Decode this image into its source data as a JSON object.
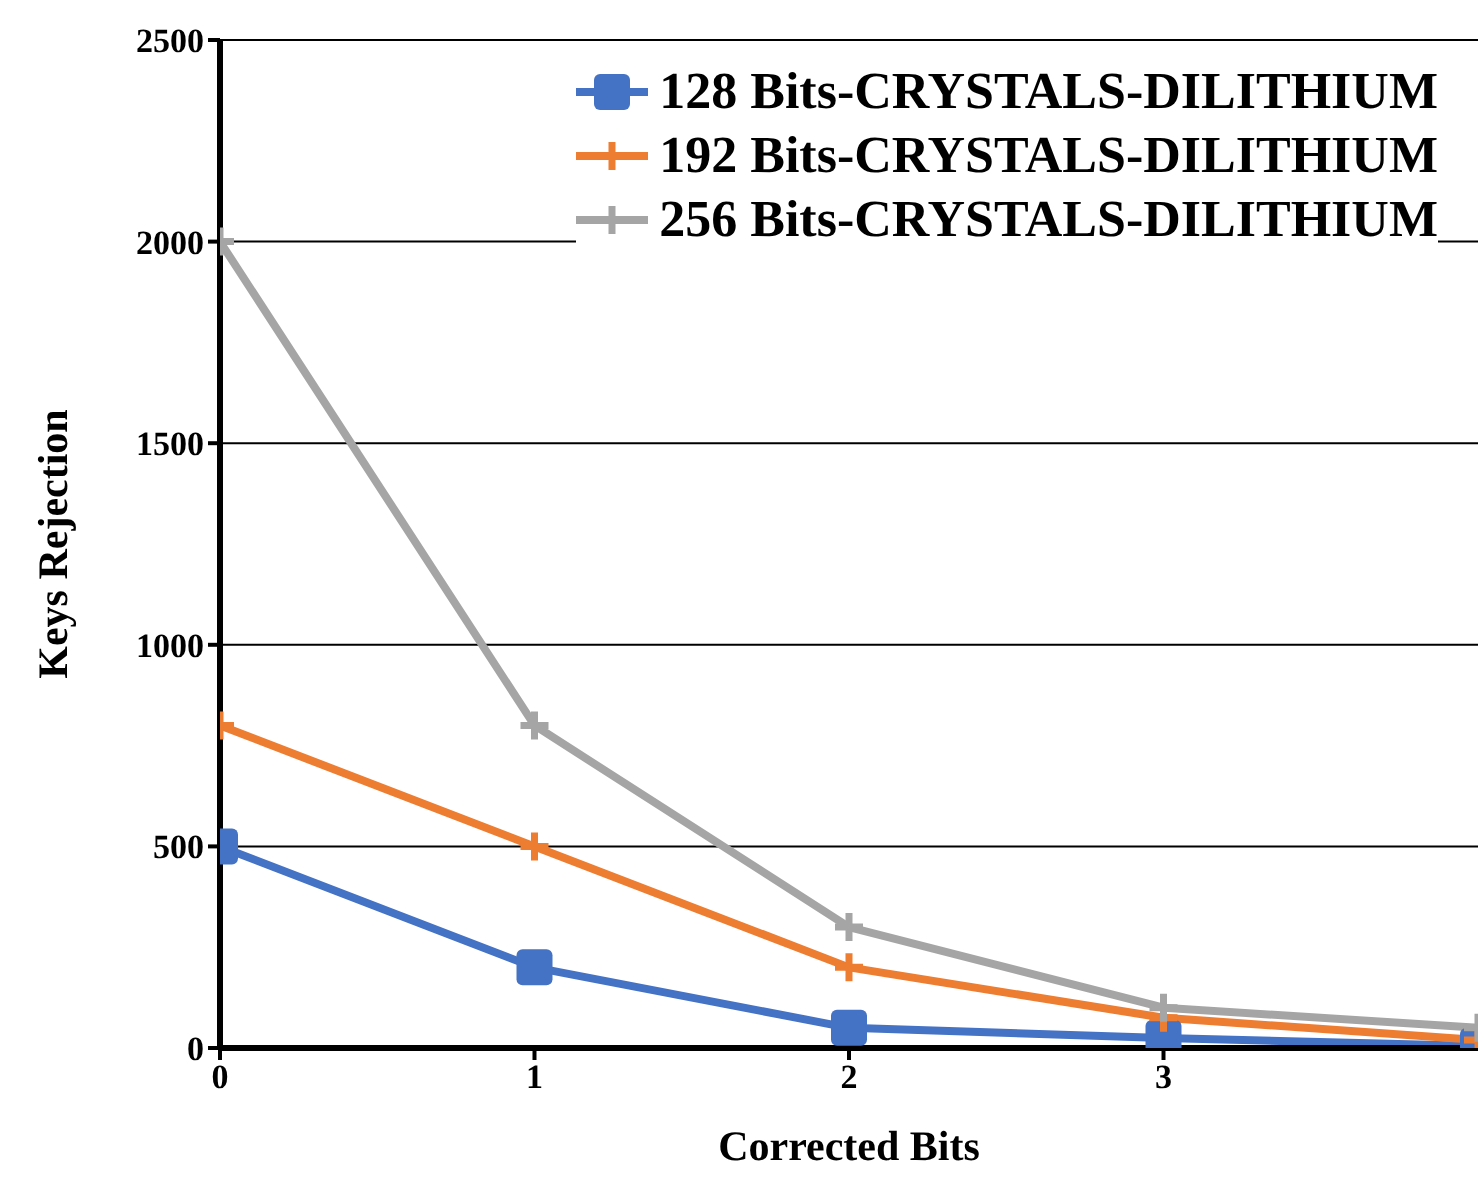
{
  "chart_data": {
    "type": "line",
    "xlabel": "Corrected Bits",
    "ylabel": "Keys Rejection",
    "x": [
      0,
      1,
      2,
      3,
      4
    ],
    "series": [
      {
        "name": "128 Bits-CRYSTALS-DILITHIUM",
        "color": "#4472c4",
        "marker": "square",
        "values": [
          500,
          200,
          50,
          25,
          5
        ]
      },
      {
        "name": "192 Bits-CRYSTALS-DILITHIUM",
        "color": "#ed7d31",
        "marker": "cross",
        "values": [
          800,
          500,
          200,
          75,
          20
        ]
      },
      {
        "name": "256 Bits-CRYSTALS-DILITHIUM",
        "color": "#a5a5a5",
        "marker": "cross",
        "values": [
          2000,
          800,
          300,
          100,
          50
        ]
      }
    ],
    "xlim": [
      0,
      4
    ],
    "xticks": [
      0,
      1,
      2,
      3
    ],
    "ylim": [
      0,
      2500
    ],
    "yticks": [
      0,
      500,
      1000,
      1500,
      2000,
      2500
    ],
    "grid": "y",
    "legend": "top right",
    "line_style": "solid"
  }
}
